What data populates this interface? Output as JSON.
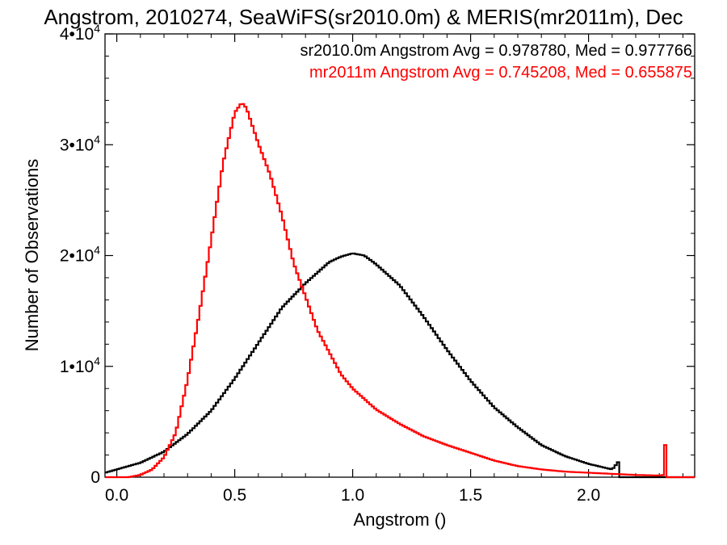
{
  "chart_data": {
    "type": "line",
    "title": "Angstrom, 2010274, SeaWiFS(sr2010.0m) & MERIS(mr2011m), Dec",
    "xlabel": "Angstrom ()",
    "ylabel": "Number of Observations",
    "xlim": [
      -0.05,
      2.45
    ],
    "ylim": [
      0,
      40000
    ],
    "x_ticks": [
      {
        "value": 0.0,
        "label": "0.0"
      },
      {
        "value": 0.5,
        "label": "0.5"
      },
      {
        "value": 1.0,
        "label": "1.0"
      },
      {
        "value": 1.5,
        "label": "1.5"
      },
      {
        "value": 2.0,
        "label": "2.0"
      }
    ],
    "y_ticks": [
      {
        "value": 0,
        "label": "0"
      },
      {
        "value": 10000,
        "label": "1•10",
        "exp": "4"
      },
      {
        "value": 20000,
        "label": "2•10",
        "exp": "4"
      },
      {
        "value": 30000,
        "label": "3•10",
        "exp": "4"
      },
      {
        "value": 40000,
        "label": "4•10",
        "exp": "4"
      }
    ],
    "grid": false,
    "legend_position": "top-right",
    "series": [
      {
        "name": "sr2010.0m Angstrom Avg = 0.978780, Med = 0.977766",
        "color": "#000000",
        "step": true,
        "points": [
          [
            -0.05,
            400
          ],
          [
            0.0,
            700
          ],
          [
            0.1,
            1300
          ],
          [
            0.2,
            2300
          ],
          [
            0.3,
            3900
          ],
          [
            0.4,
            6000
          ],
          [
            0.5,
            8900
          ],
          [
            0.6,
            12100
          ],
          [
            0.7,
            15300
          ],
          [
            0.8,
            17500
          ],
          [
            0.9,
            19400
          ],
          [
            0.95,
            19900
          ],
          [
            1.0,
            20200
          ],
          [
            1.05,
            20000
          ],
          [
            1.1,
            19200
          ],
          [
            1.2,
            17300
          ],
          [
            1.3,
            14500
          ],
          [
            1.4,
            11500
          ],
          [
            1.5,
            8700
          ],
          [
            1.6,
            6300
          ],
          [
            1.7,
            4500
          ],
          [
            1.8,
            2900
          ],
          [
            1.9,
            1900
          ],
          [
            2.0,
            1200
          ],
          [
            2.1,
            700
          ],
          [
            2.12,
            1200
          ],
          [
            2.13,
            1500
          ],
          [
            2.135,
            0
          ],
          [
            2.45,
            0
          ]
        ]
      },
      {
        "name": "mr2011m Angstrom Avg = 0.745208, Med = 0.655875",
        "color": "#ff0000",
        "step": true,
        "points": [
          [
            -0.05,
            0
          ],
          [
            0.05,
            0
          ],
          [
            0.1,
            200
          ],
          [
            0.15,
            700
          ],
          [
            0.2,
            1800
          ],
          [
            0.25,
            4000
          ],
          [
            0.3,
            8800
          ],
          [
            0.35,
            14800
          ],
          [
            0.4,
            21400
          ],
          [
            0.45,
            28300
          ],
          [
            0.5,
            32900
          ],
          [
            0.53,
            33800
          ],
          [
            0.55,
            33300
          ],
          [
            0.6,
            30100
          ],
          [
            0.65,
            27300
          ],
          [
            0.7,
            23600
          ],
          [
            0.75,
            19300
          ],
          [
            0.8,
            16300
          ],
          [
            0.85,
            13300
          ],
          [
            0.9,
            11300
          ],
          [
            0.95,
            9300
          ],
          [
            1.0,
            8000
          ],
          [
            1.1,
            6100
          ],
          [
            1.2,
            4800
          ],
          [
            1.3,
            3700
          ],
          [
            1.4,
            2900
          ],
          [
            1.5,
            2200
          ],
          [
            1.6,
            1500
          ],
          [
            1.7,
            1000
          ],
          [
            1.8,
            700
          ],
          [
            1.9,
            500
          ],
          [
            2.0,
            400
          ],
          [
            2.1,
            300
          ],
          [
            2.2,
            200
          ],
          [
            2.3,
            150
          ],
          [
            2.32,
            200
          ],
          [
            2.325,
            2900
          ],
          [
            2.33,
            0
          ],
          [
            2.45,
            0
          ]
        ]
      }
    ]
  }
}
